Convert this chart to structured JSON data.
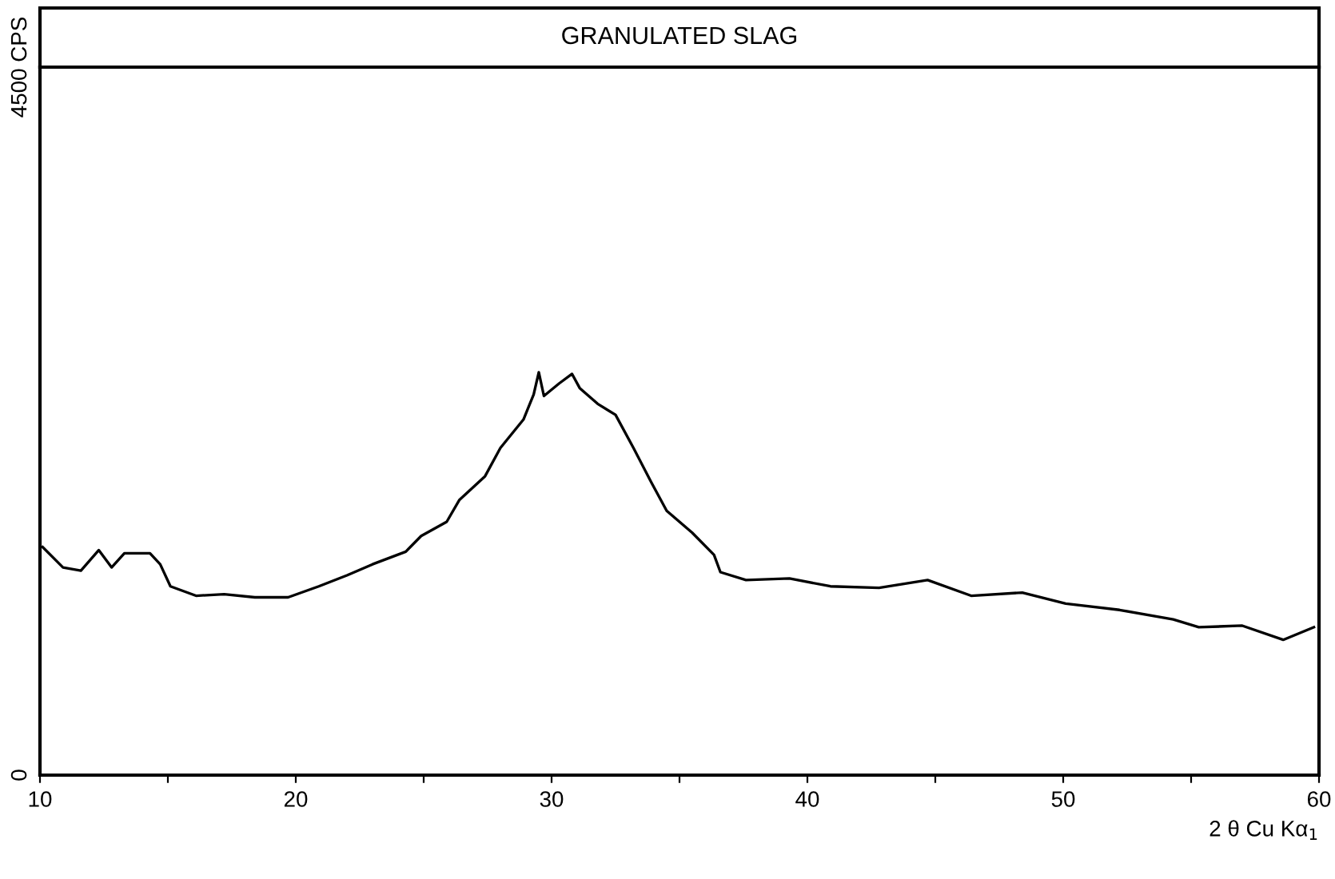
{
  "chart_data": {
    "type": "line",
    "title": "GRANULATED SLAG",
    "xlabel": "2 θ Cu Kα$_{1}$",
    "x": [
      10.1,
      10.9,
      11.6,
      12.3,
      12.8,
      13.3,
      14.3,
      14.7,
      15.1,
      16.1,
      17.2,
      18.4,
      19.7,
      20.9,
      22.0,
      23.0,
      24.3,
      24.9,
      25.9,
      26.4,
      27.4,
      28.0,
      28.9,
      29.3,
      29.5,
      29.7,
      30.3,
      30.8,
      31.1,
      31.8,
      32.5,
      33.2,
      33.9,
      34.5,
      35.5,
      36.35,
      36.6,
      37.6,
      39.3,
      40.9,
      42.8,
      44.7,
      46.4,
      48.4,
      50.1,
      52.2,
      54.3,
      55.3,
      57.0,
      58.6,
      59.8
    ],
    "series": [
      {
        "color": "#000000",
        "values": [
          1450,
          1320,
          1300,
          1430,
          1320,
          1410,
          1410,
          1340,
          1200,
          1140,
          1150,
          1130,
          1130,
          1200,
          1270,
          1340,
          1420,
          1520,
          1610,
          1750,
          1900,
          2080,
          2260,
          2420,
          2560,
          2410,
          2490,
          2550,
          2460,
          2360,
          2290,
          2080,
          1860,
          1680,
          1540,
          1400,
          1290,
          1240,
          1250,
          1200,
          1190,
          1240,
          1140,
          1160,
          1090,
          1050,
          990,
          940,
          950,
          860,
          940
        ]
      }
    ],
    "xlim": [
      10,
      60
    ],
    "ylim": [
      0,
      4500
    ],
    "xticks": [
      10,
      {
        "value": 15,
        "label": null
      },
      20,
      {
        "value": 25,
        "label": null
      },
      30,
      {
        "value": 35,
        "label": null
      },
      40,
      {
        "value": 45,
        "label": null
      },
      50,
      {
        "value": 55,
        "label": null
      },
      60
    ],
    "yticks": [
      0,
      {
        "value": 4500,
        "label": "4500 CPS"
      }
    ],
    "grid": false,
    "legend": false,
    "line_style": "solid",
    "marker": "none"
  }
}
